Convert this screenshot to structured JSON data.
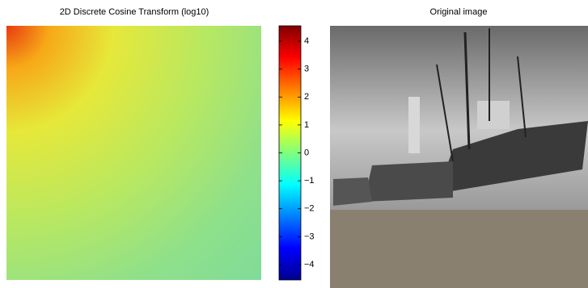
{
  "left_panel": {
    "title": "2D Discrete Cosine Transform (log10)",
    "colorbar": {
      "lim": [
        -4.55,
        4.55
      ],
      "ticks": [
        {
          "value": -4,
          "label": "−4"
        },
        {
          "value": -3,
          "label": "−3"
        },
        {
          "value": -2,
          "label": "−2"
        },
        {
          "value": -1,
          "label": "−1"
        },
        0,
        1,
        2,
        3,
        4
      ]
    }
  },
  "right_panel": {
    "title": "Original image"
  }
}
